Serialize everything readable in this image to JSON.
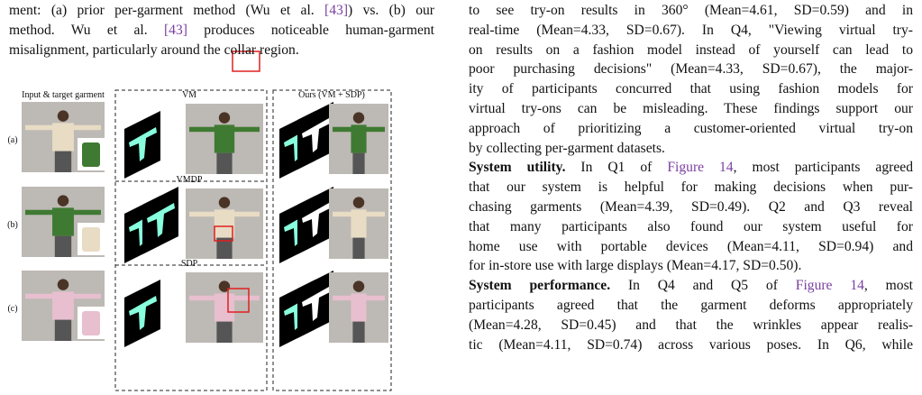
{
  "left": {
    "caption": {
      "lines": [
        [
          "ment: (a) prior per-garment method (Wu et al. ",
          {
            "text": "[43]",
            "link": true
          },
          ") vs. (b) our"
        ],
        [
          "method. Wu et al. ",
          {
            "text": "[43]",
            "link": true
          },
          " produces noticeable human-garment"
        ],
        [
          "misalignment, particularly around the collar region."
        ]
      ]
    },
    "figure": {
      "input_title": "Input & target garment",
      "ours_title": "Ours (VM + SDP)",
      "panel_titles": [
        "VM",
        "VMDP",
        "SDP"
      ],
      "row_labels": [
        "(a)",
        "(b)",
        "(c)"
      ]
    }
  },
  "right": {
    "paragraphs": [
      {
        "lines": [
          [
            "to see try-on results in 360° (Mean=4.61, SD=0.59) and in"
          ],
          [
            "real-time (Mean=4.33, SD=0.67). In Q4, \"Viewing virtual try-"
          ],
          [
            "on results on a fashion model instead of yourself can lead to"
          ],
          [
            "poor purchasing decisions\" (Mean=4.33, SD=0.67), the major-"
          ],
          [
            "ity of participants concurred that using fashion models for"
          ],
          [
            "virtual try-ons can be misleading. These findings support our"
          ],
          [
            "approach of prioritizing a customer-oriented virtual try-on"
          ],
          [
            "by collecting per-garment datasets."
          ]
        ]
      },
      {
        "lines": [
          [
            {
              "text": "System utility.",
              "bold": true
            },
            " In Q1 of ",
            {
              "text": "Figure 14",
              "link": true
            },
            ", most participants agreed"
          ],
          [
            "that our system is helpful for making decisions when pur-"
          ],
          [
            "chasing garments (Mean=4.39, SD=0.49). Q2 and Q3 reveal"
          ],
          [
            "that many participants also found our system useful for"
          ],
          [
            "home use with portable devices (Mean=4.11, SD=0.94) and"
          ],
          [
            "for in-store use with large displays (Mean=4.17, SD=0.50)."
          ]
        ]
      },
      {
        "lines": [
          [
            {
              "text": "System performance.",
              "bold": true
            },
            " In Q4 and Q5 of ",
            {
              "text": "Figure 14",
              "link": true
            },
            ", most"
          ],
          [
            "participants agreed that the garment deforms appropriately"
          ],
          [
            "(Mean=4.28, SD=0.45) and that the wrinkles appear realis-"
          ],
          [
            "tic (Mean=4.11, SD=0.74) across various poses. In Q6, while"
          ]
        ]
      }
    ]
  }
}
